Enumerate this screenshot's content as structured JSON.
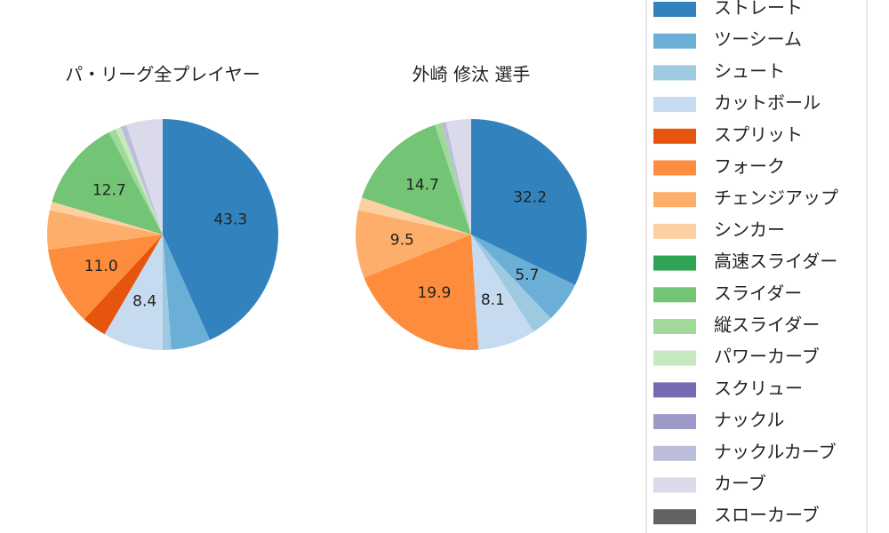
{
  "chart_data": {
    "type": "pie",
    "categories": [
      "ストレート",
      "ツーシーム",
      "シュート",
      "カットボール",
      "スプリット",
      "フォーク",
      "チェンジアップ",
      "シンカー",
      "高速スライダー",
      "スライダー",
      "縦スライダー",
      "パワーカーブ",
      "スクリュー",
      "ナックル",
      "ナックルカーブ",
      "カーブ",
      "スローカーブ"
    ],
    "colors": [
      "#3182bd",
      "#6baed6",
      "#9ecae1",
      "#c6dbef",
      "#e6550d",
      "#fd8d3c",
      "#fdae6b",
      "#fdd0a2",
      "#31a354",
      "#74c476",
      "#a1d99b",
      "#c7e9c0",
      "#756bb1",
      "#9e9ac8",
      "#bcbddc",
      "#dadaeb",
      "#636363"
    ],
    "series": [
      {
        "name": "パ・リーグ全プレイヤー",
        "values": [
          43.3,
          5.5,
          1.2,
          8.4,
          3.5,
          11.0,
          5.5,
          1.2,
          0,
          12.7,
          1.0,
          0.8,
          0,
          0,
          0.8,
          5.1,
          0
        ],
        "value_labels": [
          "43.3",
          null,
          null,
          "8.4",
          null,
          "11.0",
          null,
          null,
          null,
          "12.7",
          null,
          null,
          null,
          null,
          null,
          null,
          null
        ]
      },
      {
        "name": "外崎 修汰  選手",
        "values": [
          32.2,
          5.7,
          3.0,
          8.1,
          0,
          19.9,
          9.5,
          1.8,
          0,
          14.7,
          1.0,
          0,
          0,
          0,
          0.6,
          3.5,
          0
        ],
        "value_labels": [
          "32.2",
          "5.7",
          null,
          "8.1",
          null,
          "19.9",
          "9.5",
          null,
          null,
          "14.7",
          null,
          null,
          null,
          null,
          null,
          null,
          null
        ]
      }
    ]
  }
}
